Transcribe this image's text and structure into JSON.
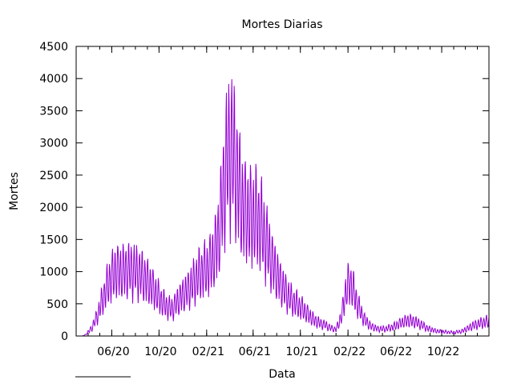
{
  "chart_data": {
    "type": "line",
    "title": "Mortes Diarias",
    "xlabel": "Data",
    "ylabel": "Mortes",
    "ylim": [
      0,
      4500
    ],
    "xlim": [
      "2020-03-01",
      "2023-01-31"
    ],
    "yticks": [
      0,
      500,
      1000,
      1500,
      2000,
      2500,
      3000,
      3500,
      4000,
      4500
    ],
    "xticks": [
      {
        "date": "2020-06-01",
        "label": "06/20"
      },
      {
        "date": "2020-10-01",
        "label": "10/20"
      },
      {
        "date": "2021-02-01",
        "label": "02/21"
      },
      {
        "date": "2021-06-01",
        "label": "06/21"
      },
      {
        "date": "2021-10-01",
        "label": "10/21"
      },
      {
        "date": "2022-02-01",
        "label": "02/22"
      },
      {
        "date": "2022-06-01",
        "label": "06/22"
      },
      {
        "date": "2022-10-01",
        "label": "10/22"
      }
    ],
    "grid": false,
    "line_color": "#9400d3",
    "series": [
      {
        "name": "",
        "trend": [
          [
            "2020-03-17",
            0
          ],
          [
            "2020-03-25",
            20
          ],
          [
            "2020-04-10",
            120
          ],
          [
            "2020-04-25",
            320
          ],
          [
            "2020-05-10",
            600
          ],
          [
            "2020-05-25",
            850
          ],
          [
            "2020-06-10",
            1000
          ],
          [
            "2020-06-25",
            1000
          ],
          [
            "2020-07-10",
            1020
          ],
          [
            "2020-07-25",
            1020
          ],
          [
            "2020-08-10",
            980
          ],
          [
            "2020-08-25",
            900
          ],
          [
            "2020-09-10",
            780
          ],
          [
            "2020-09-25",
            650
          ],
          [
            "2020-10-10",
            520
          ],
          [
            "2020-10-25",
            440
          ],
          [
            "2020-11-05",
            420
          ],
          [
            "2020-11-20",
            560
          ],
          [
            "2020-12-05",
            660
          ],
          [
            "2020-12-20",
            750
          ],
          [
            "2021-01-05",
            900
          ],
          [
            "2021-01-20",
            1000
          ],
          [
            "2021-02-05",
            1050
          ],
          [
            "2021-02-20",
            1250
          ],
          [
            "2021-03-05",
            1600
          ],
          [
            "2021-03-15",
            2200
          ],
          [
            "2021-03-25",
            2700
          ],
          [
            "2021-04-05",
            2950
          ],
          [
            "2021-04-15",
            2700
          ],
          [
            "2021-04-25",
            2300
          ],
          [
            "2021-05-05",
            2000
          ],
          [
            "2021-05-20",
            1850
          ],
          [
            "2021-06-05",
            1850
          ],
          [
            "2021-06-20",
            1750
          ],
          [
            "2021-07-05",
            1450
          ],
          [
            "2021-07-20",
            1150
          ],
          [
            "2021-08-05",
            900
          ],
          [
            "2021-08-20",
            720
          ],
          [
            "2021-09-05",
            580
          ],
          [
            "2021-09-20",
            500
          ],
          [
            "2021-10-05",
            430
          ],
          [
            "2021-10-20",
            340
          ],
          [
            "2021-11-05",
            250
          ],
          [
            "2021-11-20",
            200
          ],
          [
            "2021-12-05",
            170
          ],
          [
            "2021-12-20",
            120
          ],
          [
            "2022-01-01",
            100
          ],
          [
            "2022-01-15",
            300
          ],
          [
            "2022-01-25",
            650
          ],
          [
            "2022-02-05",
            850
          ],
          [
            "2022-02-15",
            700
          ],
          [
            "2022-02-28",
            450
          ],
          [
            "2022-03-15",
            260
          ],
          [
            "2022-04-01",
            150
          ],
          [
            "2022-04-20",
            110
          ],
          [
            "2022-05-10",
            110
          ],
          [
            "2022-06-01",
            150
          ],
          [
            "2022-06-20",
            210
          ],
          [
            "2022-07-05",
            240
          ],
          [
            "2022-07-20",
            230
          ],
          [
            "2022-08-05",
            190
          ],
          [
            "2022-08-25",
            120
          ],
          [
            "2022-09-15",
            80
          ],
          [
            "2022-10-05",
            65
          ],
          [
            "2022-11-01",
            55
          ],
          [
            "2022-11-20",
            70
          ],
          [
            "2022-12-05",
            110
          ],
          [
            "2022-12-20",
            160
          ],
          [
            "2023-01-10",
            200
          ],
          [
            "2023-01-31",
            230
          ]
        ],
        "weekly_amplitude": 0.38
      }
    ]
  }
}
